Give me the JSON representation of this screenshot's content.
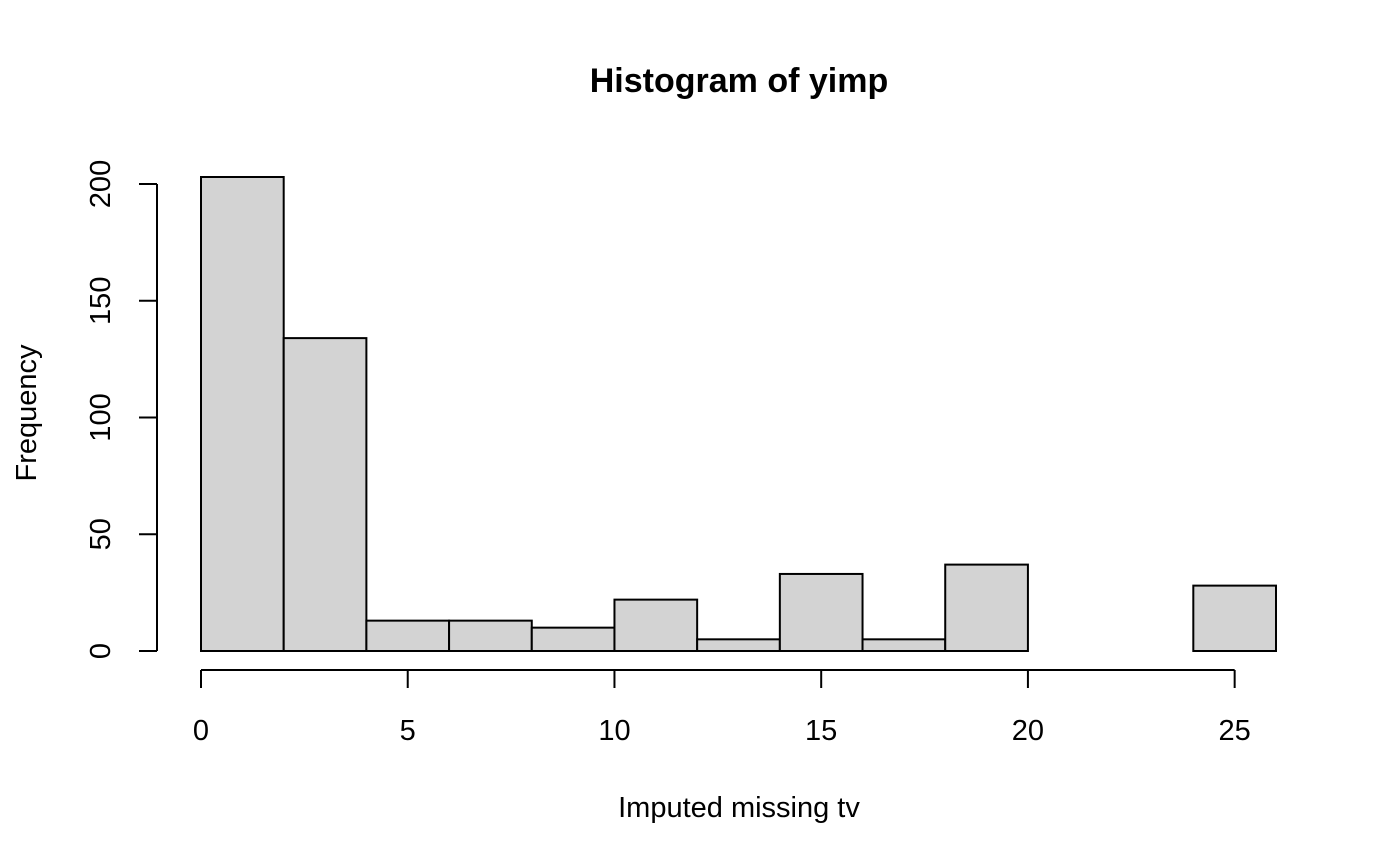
{
  "chart_data": {
    "type": "bar",
    "subtype": "histogram",
    "title": "Histogram of yimp",
    "xlabel": "Imputed missing tv",
    "ylabel": "Frequency",
    "bin_edges": [
      0,
      2,
      4,
      6,
      8,
      10,
      12,
      14,
      16,
      18,
      20,
      22,
      24,
      26
    ],
    "values": [
      203,
      134,
      13,
      13,
      10,
      22,
      5,
      33,
      5,
      37,
      0,
      0,
      28
    ],
    "xlim": [
      0,
      26
    ],
    "ylim": [
      0,
      203
    ],
    "x_ticks": [
      0,
      5,
      10,
      15,
      20,
      25
    ],
    "x_tick_labels": [
      "0",
      "5",
      "10",
      "15",
      "20",
      "25"
    ],
    "y_ticks": [
      0,
      50,
      100,
      150,
      200
    ],
    "y_tick_labels": [
      "0",
      "50",
      "100",
      "150",
      "200"
    ],
    "grid": false,
    "legend": "none",
    "colors": {
      "bar_fill": "#d3d3d3",
      "bar_stroke": "#000000"
    }
  }
}
